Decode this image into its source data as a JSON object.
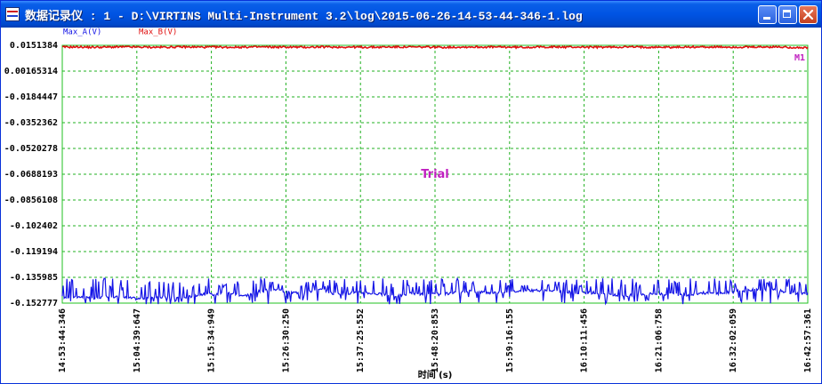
{
  "window": {
    "title": "数据记录仪 : 1 - D:\\VIRTINS Multi-Instrument 3.2\\log\\2015-06-26-14-53-44-346-1.log"
  },
  "colors": {
    "series_a": "#1414e6",
    "series_b": "#e01010",
    "grid": "#20b020",
    "axis_border": "#20c020",
    "watermark": "#c020c0"
  },
  "icons": [
    "data-logger-app-icon",
    "minimize-icon",
    "maximize-icon",
    "close-icon"
  ],
  "chart_data": {
    "type": "line",
    "title": "",
    "xlabel": "时间 (s)",
    "ylabel": "",
    "watermark": "Trial",
    "edge_marker": "M1",
    "grid": true,
    "legend_placement": "top-left",
    "x_ticks": [
      "14:53:44:346",
      "15:04:39:647",
      "15:15:34:949",
      "15:26:30:250",
      "15:37:25:552",
      "15:48:20:853",
      "15:59:16:155",
      "16:10:11:456",
      "16:21:06:758",
      "16:32:02:059",
      "16:42:57:361"
    ],
    "y_ticks": [
      "0.0151384",
      "0.00165314",
      "-0.0184447",
      "-0.0352362",
      "-0.0520278",
      "-0.0688193",
      "-0.0856108",
      "-0.102402",
      "-0.119194",
      "-0.135985",
      "-0.152777"
    ],
    "ylim": [
      -0.152777,
      0.0151384
    ],
    "series": [
      {
        "name": "Max_A(V)",
        "typical": -0.1475,
        "range": [
          -0.1535,
          -0.1365
        ],
        "values": [
          -0.149,
          -0.1485,
          -0.15,
          -0.148,
          -0.149,
          -0.15,
          -0.1485,
          -0.149,
          -0.1495,
          -0.147,
          -0.147,
          -0.146,
          -0.148,
          -0.145,
          -0.144,
          -0.146,
          -0.1455,
          -0.144,
          -0.147,
          -0.146,
          -0.146,
          -0.147,
          -0.148,
          -0.1465,
          -0.147,
          -0.147,
          -0.146,
          -0.145,
          -0.146,
          -0.1455,
          -0.145,
          -0.1445,
          -0.145,
          -0.1455,
          -0.146,
          -0.146,
          -0.1475,
          -0.148,
          -0.147,
          -0.1465,
          -0.147,
          -0.1475,
          -0.146,
          -0.1465,
          -0.1455,
          -0.1445,
          -0.144,
          -0.1445,
          -0.146,
          -0.147
        ]
      },
      {
        "name": "Max_B(V)",
        "typical": 0.014,
        "range": [
          0.0125,
          0.0151
        ],
        "values": [
          0.014,
          0.0141,
          0.0139,
          0.014,
          0.0141,
          0.014,
          0.0139,
          0.014,
          0.0141,
          0.014,
          0.014,
          0.0139,
          0.014,
          0.0141,
          0.014,
          0.014,
          0.0139,
          0.0141,
          0.014,
          0.014,
          0.0139,
          0.014,
          0.0141,
          0.014,
          0.014,
          0.0139,
          0.014,
          0.0141,
          0.014,
          0.014,
          0.0139,
          0.014,
          0.0141,
          0.014,
          0.014,
          0.0139,
          0.014,
          0.0141,
          0.014,
          0.014,
          0.0139,
          0.014,
          0.0141,
          0.014,
          0.014,
          0.0139,
          0.014,
          0.0141,
          0.0138,
          0.0135
        ]
      }
    ]
  }
}
